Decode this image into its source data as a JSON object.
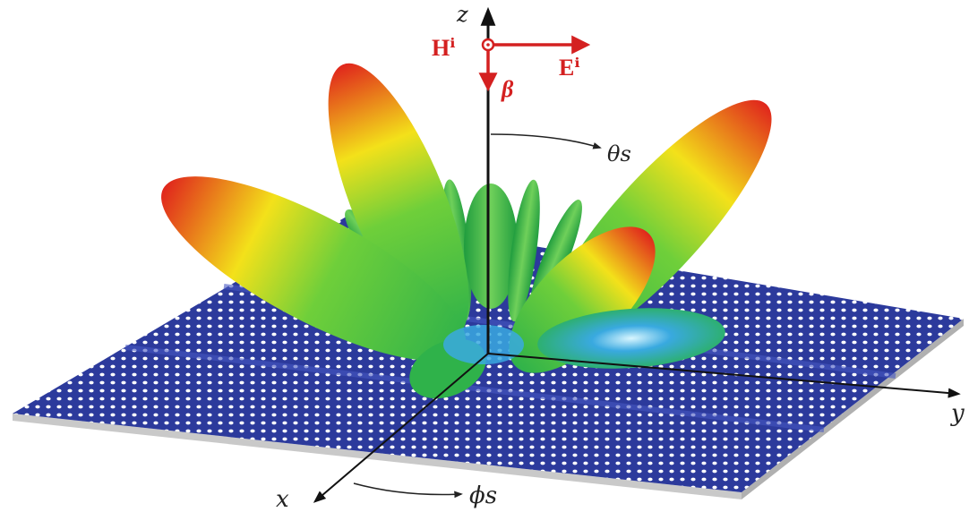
{
  "figure": {
    "axes": {
      "z_label": "z",
      "x_label": "x",
      "y_label": "y",
      "theta_label": "θs",
      "phi_label": "ϕs"
    },
    "incident_wave": {
      "h_label": "Hⁱ",
      "e_label": "Eⁱ",
      "beta_label": "β"
    },
    "colors": {
      "metasurface_base": "#2c3a9c",
      "metasurface_dots": "#ffffff",
      "metasurface_edge": "#c9c9c9",
      "lobe_peak": "#e0261c",
      "lobe_mid": "#f3e11a",
      "lobe_low": "#29b24a",
      "lobe_min": "#39a9e0",
      "incident_arrows": "#d42020",
      "axes": "#111111"
    },
    "icons": [
      "dot-in-circle-icon",
      "arrow-icon"
    ]
  }
}
